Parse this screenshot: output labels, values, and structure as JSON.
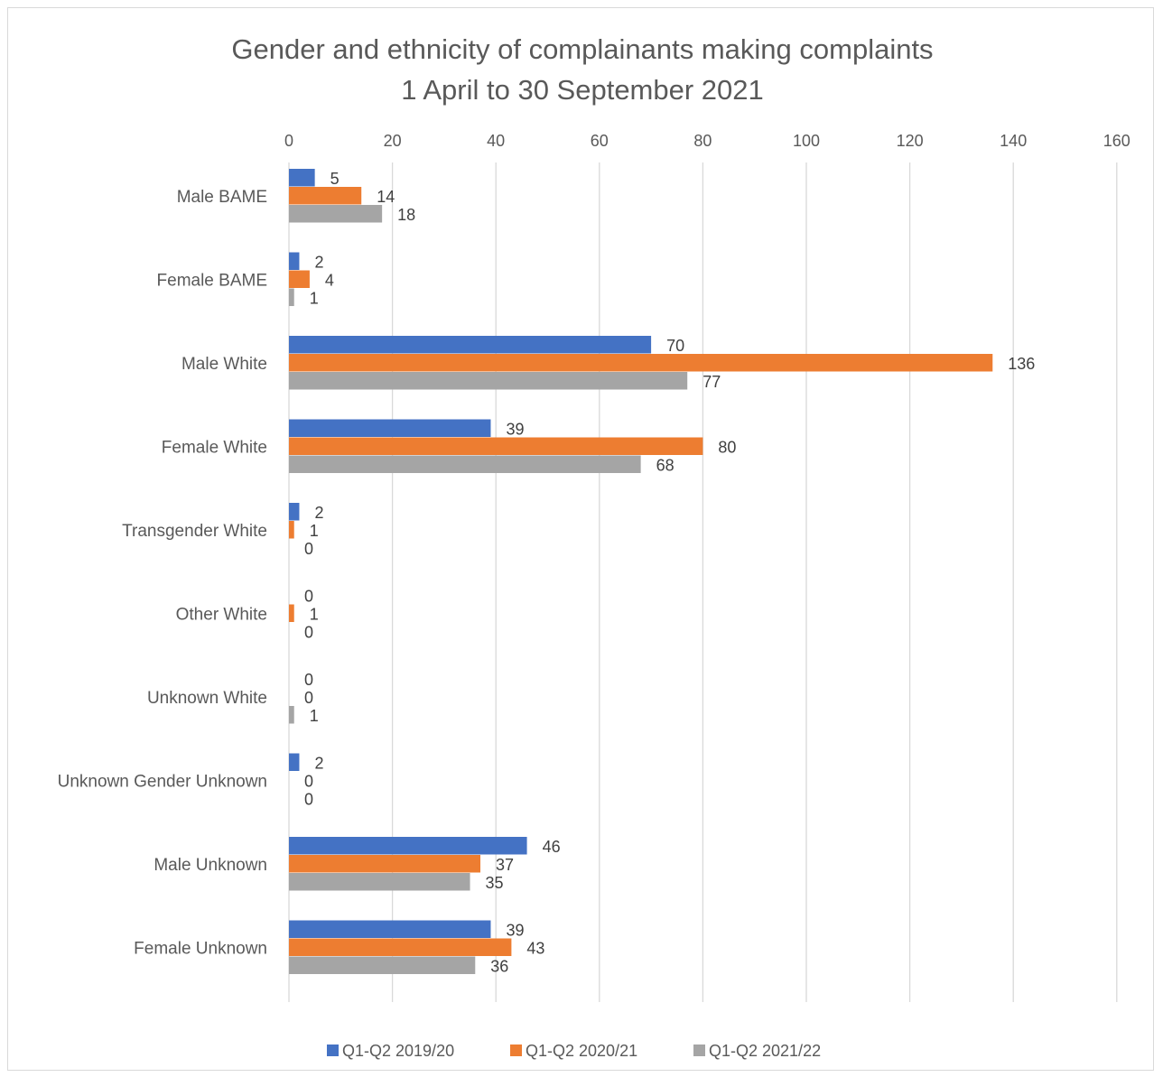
{
  "chart_data": {
    "type": "bar",
    "orientation": "horizontal",
    "title": [
      "Gender and ethnicity of complainants making complaints",
      "1 April to 30 September 2021"
    ],
    "categories": [
      "Male BAME",
      "Female BAME",
      "Male White",
      "Female White",
      "Transgender White",
      "Other White",
      "Unknown White",
      "Unknown Gender Unknown",
      "Male Unknown",
      "Female Unknown"
    ],
    "series": [
      {
        "name": "Q1-Q2 2019/20",
        "color": "#4472c4",
        "values": [
          5,
          2,
          70,
          39,
          2,
          0,
          0,
          2,
          46,
          39
        ]
      },
      {
        "name": "Q1-Q2 2020/21",
        "color": "#ed7d31",
        "values": [
          14,
          4,
          136,
          80,
          1,
          1,
          0,
          0,
          37,
          43
        ]
      },
      {
        "name": "Q1-Q2 2021/22",
        "color": "#a5a5a5",
        "values": [
          18,
          1,
          77,
          68,
          0,
          0,
          1,
          0,
          35,
          36
        ]
      }
    ],
    "xlim": [
      0,
      160
    ],
    "xticks": [
      0,
      20,
      40,
      60,
      80,
      100,
      120,
      140,
      160
    ],
    "xaxis_position": "top",
    "grid": true,
    "legend": "bottom",
    "data_labels": true
  }
}
